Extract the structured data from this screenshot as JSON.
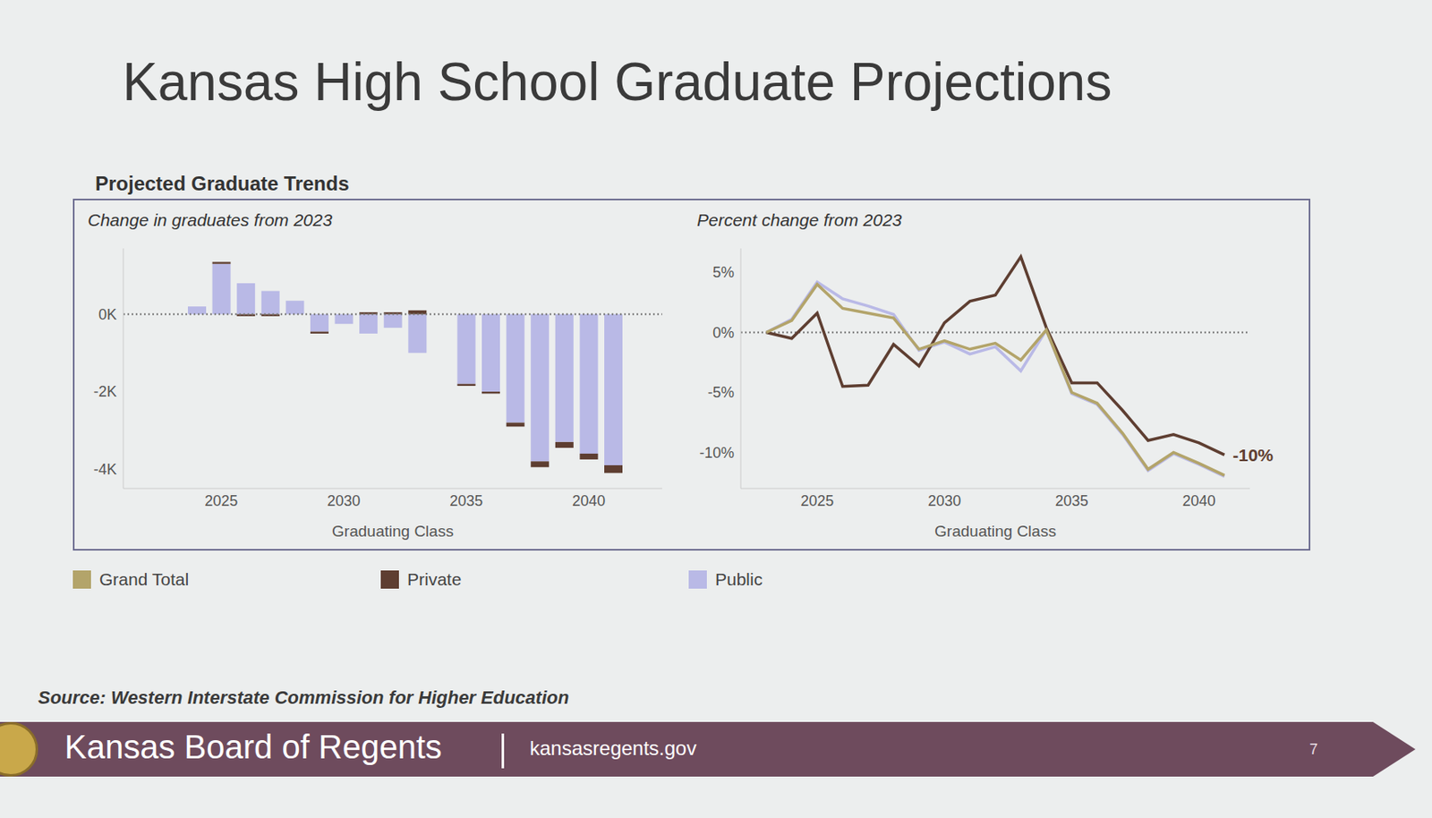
{
  "title": "Kansas High School Graduate Projections",
  "subtitle": "Projected Graduate Trends",
  "source": "Source: Western Interstate Commission for Higher Education",
  "footer": {
    "organization": "Kansas Board of Regents",
    "url": "kansasregents.gov",
    "page": 7
  },
  "chart_data": [
    {
      "type": "bar",
      "title": "Change in graduates from 2023",
      "x_label": "Graduating Class",
      "stacked": true,
      "grid": false,
      "x": [
        2023,
        2024,
        2025,
        2026,
        2027,
        2028,
        2029,
        2030,
        2031,
        2032,
        2033,
        2034,
        2035,
        2036,
        2037,
        2038,
        2039,
        2040,
        2041
      ],
      "xlim": [
        2021,
        2043
      ],
      "xticks": [
        2025,
        2030,
        2035,
        2040
      ],
      "ylim": [
        -4500,
        1700
      ],
      "yticks": [
        {
          "value": -4000,
          "label": "-4K"
        },
        {
          "value": -2000,
          "label": "-2K"
        },
        {
          "value": 0,
          "label": "0K"
        }
      ],
      "series": [
        {
          "name": "Public",
          "color": "#b9b9e6",
          "values": [
            0,
            200,
            1300,
            800,
            600,
            350,
            -450,
            -250,
            -500,
            -350,
            -1000,
            0,
            -1800,
            -2000,
            -2800,
            -3800,
            -3300,
            -3600,
            -3900
          ]
        },
        {
          "name": "Private",
          "color": "#5e3e31",
          "values": [
            0,
            0,
            50,
            -50,
            -50,
            0,
            -50,
            0,
            50,
            50,
            100,
            0,
            -50,
            -50,
            -100,
            -150,
            -150,
            -150,
            -200
          ]
        }
      ]
    },
    {
      "type": "line",
      "title": "Percent change from 2023",
      "x_label": "Graduating Class",
      "grid": false,
      "legend": "bottom",
      "x": [
        2023,
        2024,
        2025,
        2026,
        2027,
        2028,
        2029,
        2030,
        2031,
        2032,
        2033,
        2034,
        2035,
        2036,
        2037,
        2038,
        2039,
        2040,
        2041
      ],
      "xlim": [
        2022,
        2042
      ],
      "xticks": [
        2025,
        2030,
        2035,
        2040
      ],
      "ylim": [
        -13,
        7
      ],
      "yticks": [
        {
          "value": -10,
          "label": "-10%"
        },
        {
          "value": -5,
          "label": "-5%"
        },
        {
          "value": 0,
          "label": "0%"
        },
        {
          "value": 5,
          "label": "5%"
        }
      ],
      "series": [
        {
          "name": "Grand Total",
          "color": "#b3a46a",
          "values": [
            0,
            1,
            4,
            2,
            1.6,
            1.2,
            -1.4,
            -0.7,
            -1.4,
            -0.9,
            -2.3,
            0.2,
            -5,
            -5.9,
            -8.4,
            -11.4,
            -10,
            -10.9,
            -11.9
          ]
        },
        {
          "name": "Private",
          "color": "#5e3e31",
          "values": [
            0,
            -0.5,
            1.6,
            -4.5,
            -4.4,
            -1,
            -2.8,
            0.8,
            2.6,
            3.1,
            6.3,
            0.4,
            -4.2,
            -4.2,
            -6.5,
            -9,
            -8.5,
            -9.2,
            -10.2
          ]
        },
        {
          "name": "Public",
          "color": "#b9b9e6",
          "values": [
            0,
            1.1,
            4.2,
            2.8,
            2.2,
            1.5,
            -1.5,
            -0.8,
            -1.8,
            -1.2,
            -3.2,
            0.2,
            -5.1,
            -6,
            -8.5,
            -11.5,
            -10.1,
            -11,
            -12
          ]
        }
      ],
      "annotations": [
        {
          "text": "-10%",
          "series": "Private"
        }
      ]
    }
  ]
}
